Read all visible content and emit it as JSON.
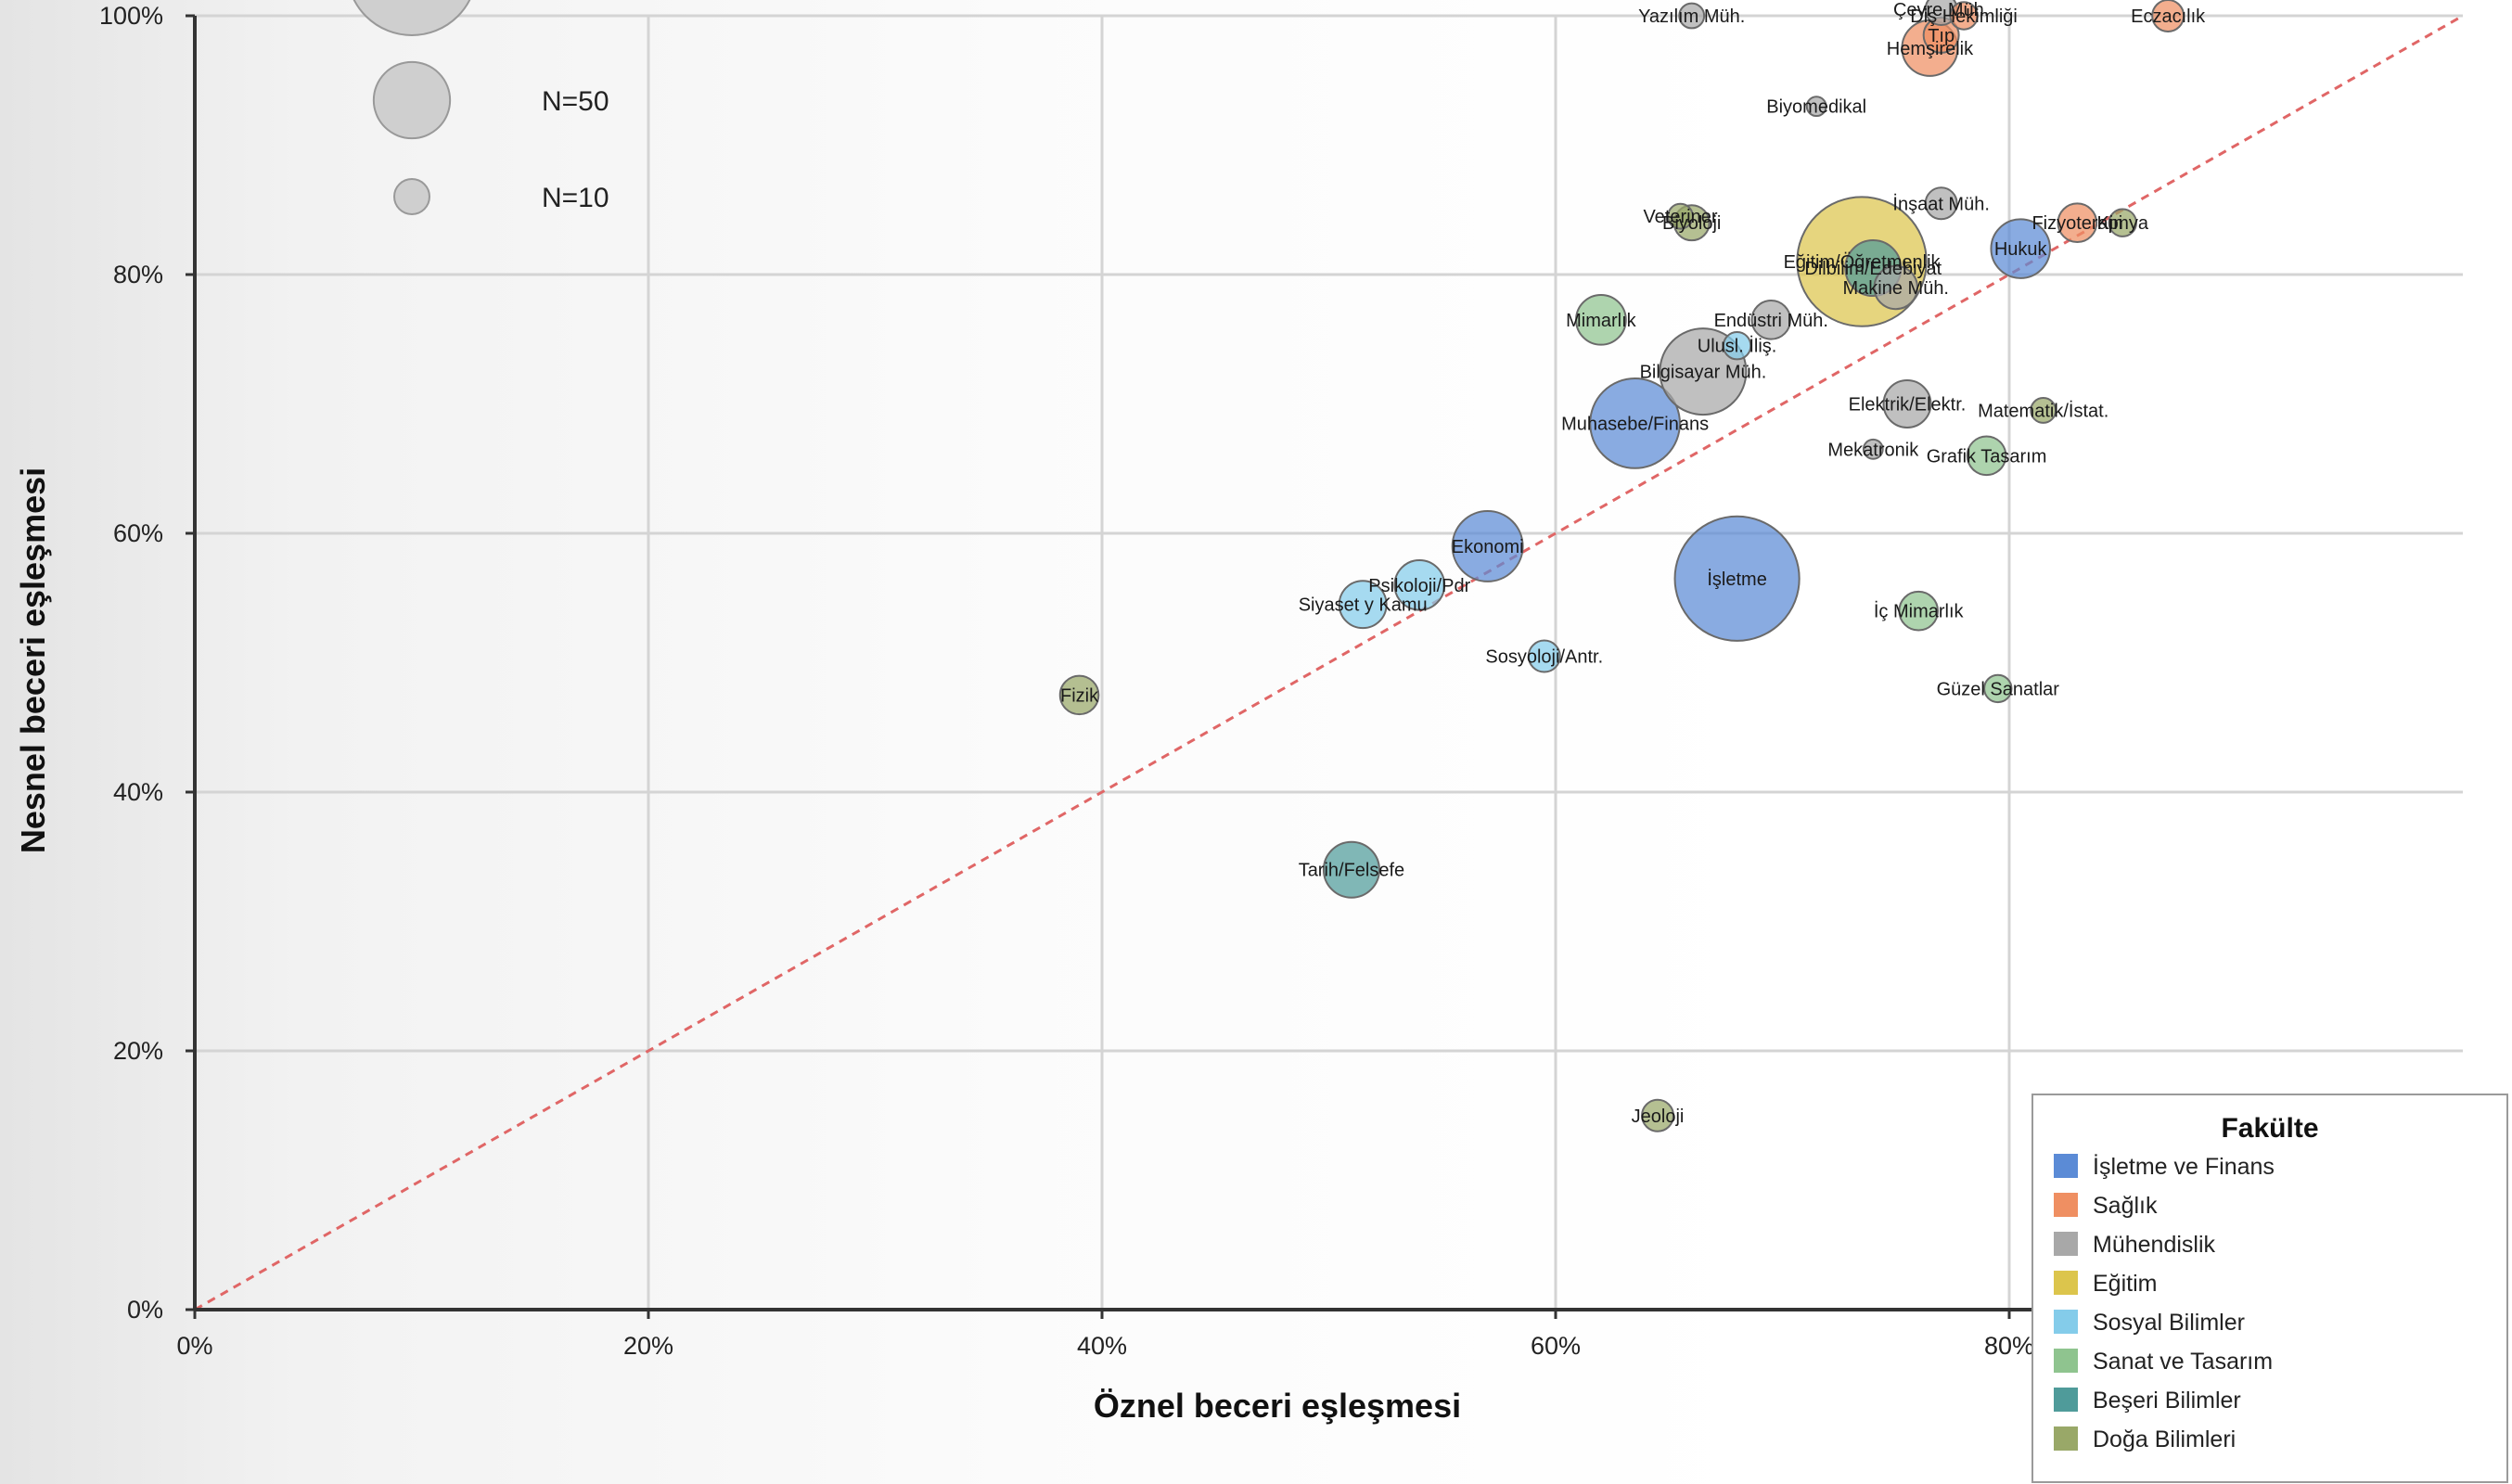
{
  "chart_data": {
    "type": "scatter",
    "subtype": "bubble",
    "title": "",
    "xlabel": "Öznel beceri eşleşmesi",
    "ylabel": "Nesnel beceri eşleşmesi",
    "xlim": [
      0,
      100
    ],
    "ylim": [
      0,
      100
    ],
    "x_ticks": [
      0,
      20,
      40,
      60,
      80
    ],
    "y_ticks": [
      0,
      20,
      40,
      60,
      80,
      100
    ],
    "tick_format": "%",
    "grid": true,
    "reference_line": {
      "from": [
        0,
        0
      ],
      "to": [
        100,
        100
      ],
      "style": "dashed",
      "color": "#e06666"
    },
    "size_legend": [
      {
        "n": 50,
        "label": "N=50"
      },
      {
        "n": 10,
        "label": "N=10"
      }
    ],
    "legend": {
      "title": "Fakülte",
      "position": "bottom-right",
      "entries": [
        {
          "name": "İşletme ve Finans",
          "color": "#5b8bd6"
        },
        {
          "name": "Sağlık",
          "color": "#ef8f62"
        },
        {
          "name": "Mühendislik",
          "color": "#a8a8a8"
        },
        {
          "name": "Eğitim",
          "color": "#dcc54c"
        },
        {
          "name": "Sosyal Bilimler",
          "color": "#84ccea"
        },
        {
          "name": "Sanat ve Tasarım",
          "color": "#8fc48f"
        },
        {
          "name": "Beşeri Bilimler",
          "color": "#4f9b9a"
        },
        {
          "name": "Doğa Bilimleri",
          "color": "#99a868"
        }
      ]
    },
    "points": [
      {
        "label": "Yazılım Müh.",
        "x": 66,
        "y": 100,
        "n": 5,
        "group": "Mühendislik"
      },
      {
        "label": "Çevre Müh.",
        "x": 77,
        "y": 100.5,
        "n": 8,
        "group": "Mühendislik"
      },
      {
        "label": "Diş Hekimliği",
        "x": 78,
        "y": 100,
        "n": 6,
        "group": "Sağlık"
      },
      {
        "label": "Eczacılık",
        "x": 87,
        "y": 100,
        "n": 8,
        "group": "Sağlık"
      },
      {
        "label": "Hemşirelik",
        "x": 76.5,
        "y": 97.5,
        "n": 25,
        "group": "Sağlık"
      },
      {
        "label": "Tıp",
        "x": 77,
        "y": 98.5,
        "n": 10,
        "group": "Sağlık"
      },
      {
        "label": "Biyomedikal",
        "x": 71.5,
        "y": 93,
        "n": 3,
        "group": "Mühendislik"
      },
      {
        "label": "İnşaat Müh.",
        "x": 77,
        "y": 85.5,
        "n": 8,
        "group": "Mühendislik"
      },
      {
        "label": "Veteriner",
        "x": 65.5,
        "y": 84.5,
        "n": 5,
        "group": "Doğa Bilimleri"
      },
      {
        "label": "Biyoloji",
        "x": 66,
        "y": 84,
        "n": 10,
        "group": "Doğa Bilimleri"
      },
      {
        "label": "Fizyoterapi",
        "x": 83,
        "y": 84,
        "n": 12,
        "group": "Sağlık"
      },
      {
        "label": "Kimya",
        "x": 85,
        "y": 84,
        "n": 6,
        "group": "Doğa Bilimleri"
      },
      {
        "label": "Hukuk",
        "x": 80.5,
        "y": 82,
        "n": 28,
        "group": "İşletme ve Finans"
      },
      {
        "label": "Eğitim/Öğretmenlik",
        "x": 73.5,
        "y": 81,
        "n": 135,
        "group": "Eğitim"
      },
      {
        "label": "Dilbilim/Edebiyat",
        "x": 74,
        "y": 80.5,
        "n": 25,
        "group": "Beşeri Bilimler"
      },
      {
        "label": "Makine Müh.",
        "x": 75,
        "y": 79,
        "n": 15,
        "group": "Mühendislik"
      },
      {
        "label": "Mimarlık",
        "x": 62,
        "y": 76.5,
        "n": 20,
        "group": "Sanat ve Tasarım"
      },
      {
        "label": "Endüstri Müh.",
        "x": 69.5,
        "y": 76.5,
        "n": 12,
        "group": "Mühendislik"
      },
      {
        "label": "Ulusl. İliş.",
        "x": 68,
        "y": 74.5,
        "n": 6,
        "group": "Sosyal Bilimler"
      },
      {
        "label": "Bilgisayar Müh.",
        "x": 66.5,
        "y": 72.5,
        "n": 60,
        "group": "Mühendislik"
      },
      {
        "label": "Elektrik/Elektr.",
        "x": 75.5,
        "y": 70,
        "n": 18,
        "group": "Mühendislik"
      },
      {
        "label": "Matematik/İstat.",
        "x": 81.5,
        "y": 69.5,
        "n": 5,
        "group": "Doğa Bilimleri"
      },
      {
        "label": "Muhasebe/Finans",
        "x": 63.5,
        "y": 68.5,
        "n": 65,
        "group": "İşletme ve Finans"
      },
      {
        "label": "Mekatronik",
        "x": 74,
        "y": 66.5,
        "n": 3,
        "group": "Mühendislik"
      },
      {
        "label": "Grafik Tasarım",
        "x": 79,
        "y": 66,
        "n": 12,
        "group": "Sanat ve Tasarım"
      },
      {
        "label": "Ekonomi",
        "x": 57,
        "y": 59,
        "n": 40,
        "group": "İşletme ve Finans"
      },
      {
        "label": "İşletme",
        "x": 68,
        "y": 56.5,
        "n": 125,
        "group": "İşletme ve Finans"
      },
      {
        "label": "Psikoloji/Pdr",
        "x": 54,
        "y": 56,
        "n": 20,
        "group": "Sosyal Bilimler"
      },
      {
        "label": "Siyaset y Kamu",
        "x": 51.5,
        "y": 54.5,
        "n": 18,
        "group": "Sosyal Bilimler"
      },
      {
        "label": "İç Mimarlık",
        "x": 76,
        "y": 54,
        "n": 12,
        "group": "Sanat ve Tasarım"
      },
      {
        "label": "Sosyoloji/Antr.",
        "x": 59.5,
        "y": 50.5,
        "n": 8,
        "group": "Sosyal Bilimler"
      },
      {
        "label": "Güzel Sanatlar",
        "x": 79.5,
        "y": 48,
        "n": 6,
        "group": "Sanat ve Tasarım"
      },
      {
        "label": "Fizik",
        "x": 39,
        "y": 47.5,
        "n": 12,
        "group": "Doğa Bilimleri"
      },
      {
        "label": "Tarih/Felsefe",
        "x": 51,
        "y": 34,
        "n": 25,
        "group": "Beşeri Bilimler"
      },
      {
        "label": "Jeoloji",
        "x": 64.5,
        "y": 15,
        "n": 8,
        "group": "Doğa Bilimleri"
      }
    ]
  }
}
